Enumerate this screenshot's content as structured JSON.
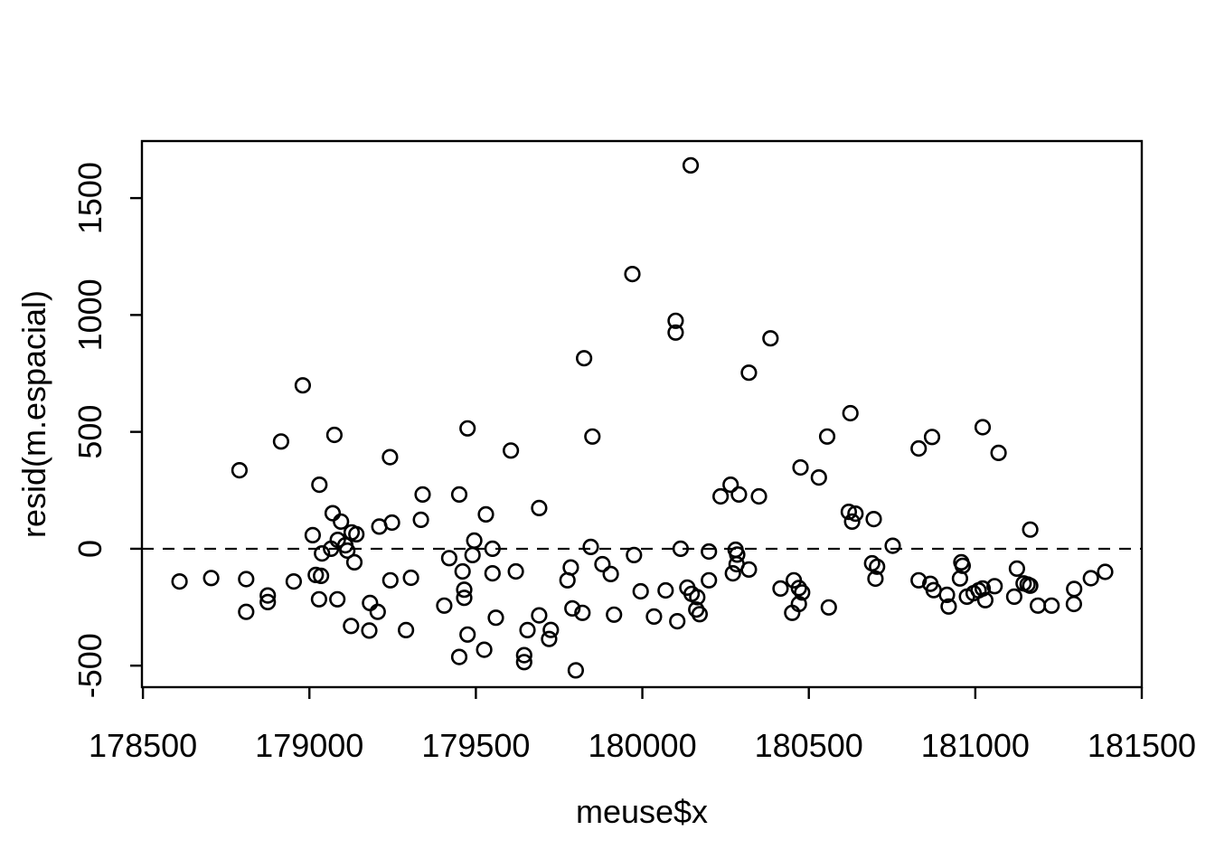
{
  "chart_data": {
    "type": "scatter",
    "title": "",
    "xlabel": "meuse$x",
    "ylabel": "resid(m.espacial)",
    "x_ticks": [
      178500,
      179000,
      179500,
      180000,
      180500,
      181000,
      181500
    ],
    "y_ticks": [
      -500,
      0,
      500,
      1000,
      1500
    ],
    "xlim": [
      178497,
      181500
    ],
    "ylim": [
      -592,
      1744
    ],
    "grid": false,
    "legend": "none",
    "marker": "open-circle",
    "marker_color": "#000000",
    "background_color": "#ffffff",
    "reference_line": {
      "axis": "y",
      "value": 0,
      "style": "dashed",
      "color": "#000000"
    },
    "points": [
      [
        178980,
        699
      ],
      [
        180145,
        1640
      ],
      [
        179970,
        1175
      ],
      [
        180100,
        975
      ],
      [
        180100,
        925
      ],
      [
        179825,
        815
      ],
      [
        180385,
        900
      ],
      [
        180320,
        753
      ],
      [
        180625,
        580
      ],
      [
        178915,
        459
      ],
      [
        179075,
        487
      ],
      [
        178790,
        336
      ],
      [
        179030,
        274
      ],
      [
        179070,
        152
      ],
      [
        179095,
        116
      ],
      [
        179010,
        58
      ],
      [
        179085,
        38
      ],
      [
        179127,
        70
      ],
      [
        179141,
        62
      ],
      [
        179108,
        15
      ],
      [
        179114,
        -8
      ],
      [
        179065,
        0
      ],
      [
        179038,
        -20
      ],
      [
        179210,
        95
      ],
      [
        179248,
        112
      ],
      [
        179135,
        -58
      ],
      [
        179019,
        -112
      ],
      [
        179035,
        -116
      ],
      [
        178953,
        -140
      ],
      [
        178610,
        -140
      ],
      [
        178705,
        -125
      ],
      [
        178810,
        -130
      ],
      [
        178875,
        -200
      ],
      [
        178875,
        -228
      ],
      [
        178810,
        -270
      ],
      [
        179029,
        -216
      ],
      [
        179084,
        -216
      ],
      [
        179182,
        -232
      ],
      [
        179205,
        -270
      ],
      [
        179125,
        -330
      ],
      [
        179180,
        -350
      ],
      [
        179243,
        -135
      ],
      [
        179475,
        515
      ],
      [
        179605,
        420
      ],
      [
        179850,
        480
      ],
      [
        179242,
        392
      ],
      [
        179340,
        232
      ],
      [
        179450,
        232
      ],
      [
        179335,
        124
      ],
      [
        179530,
        147
      ],
      [
        179690,
        174
      ],
      [
        179420,
        -40
      ],
      [
        179495,
        35
      ],
      [
        179490,
        -27
      ],
      [
        179550,
        0
      ],
      [
        179460,
        -97
      ],
      [
        179550,
        -105
      ],
      [
        179620,
        -97
      ],
      [
        179305,
        -124
      ],
      [
        179465,
        -175
      ],
      [
        179465,
        -210
      ],
      [
        179405,
        -243
      ],
      [
        179560,
        -295
      ],
      [
        179690,
        -285
      ],
      [
        179655,
        -348
      ],
      [
        179725,
        -347
      ],
      [
        179720,
        -386
      ],
      [
        179290,
        -348
      ],
      [
        179475,
        -367
      ],
      [
        179525,
        -432
      ],
      [
        179450,
        -463
      ],
      [
        179645,
        -455
      ],
      [
        179645,
        -485
      ],
      [
        179800,
        -520
      ],
      [
        179785,
        -80
      ],
      [
        179775,
        -135
      ],
      [
        179845,
        8
      ],
      [
        179790,
        -255
      ],
      [
        179820,
        -274
      ],
      [
        179915,
        -282
      ],
      [
        179880,
        -66
      ],
      [
        179905,
        -108
      ],
      [
        179975,
        -27
      ],
      [
        180555,
        480
      ],
      [
        180475,
        348
      ],
      [
        180530,
        305
      ],
      [
        180265,
        274
      ],
      [
        180235,
        224
      ],
      [
        180290,
        232
      ],
      [
        180350,
        224
      ],
      [
        180620,
        158
      ],
      [
        180640,
        150
      ],
      [
        180630,
        116
      ],
      [
        180695,
        127
      ],
      [
        180115,
        0
      ],
      [
        180200,
        -12
      ],
      [
        180280,
        -4
      ],
      [
        180285,
        -25
      ],
      [
        180283,
        -66
      ],
      [
        180272,
        -105
      ],
      [
        180320,
        -89
      ],
      [
        180200,
        -135
      ],
      [
        180070,
        -178
      ],
      [
        179995,
        -182
      ],
      [
        180135,
        -166
      ],
      [
        180148,
        -193
      ],
      [
        180165,
        -207
      ],
      [
        180162,
        -260
      ],
      [
        180172,
        -280
      ],
      [
        180035,
        -290
      ],
      [
        180105,
        -310
      ],
      [
        180415,
        -170
      ],
      [
        180455,
        -135
      ],
      [
        180470,
        -168
      ],
      [
        180480,
        -187
      ],
      [
        180470,
        -236
      ],
      [
        180450,
        -274
      ],
      [
        180560,
        -251
      ],
      [
        180690,
        -62
      ],
      [
        180705,
        -77
      ],
      [
        180700,
        -128
      ],
      [
        180752,
        13
      ],
      [
        180830,
        429
      ],
      [
        180870,
        478
      ],
      [
        181022,
        520
      ],
      [
        181070,
        410
      ],
      [
        181165,
        82
      ],
      [
        180830,
        -135
      ],
      [
        180865,
        -150
      ],
      [
        180875,
        -177
      ],
      [
        180915,
        -197
      ],
      [
        180920,
        -247
      ],
      [
        180958,
        -58
      ],
      [
        180962,
        -73
      ],
      [
        180954,
        -127
      ],
      [
        180975,
        -205
      ],
      [
        180995,
        -190
      ],
      [
        181010,
        -178
      ],
      [
        181022,
        -170
      ],
      [
        181030,
        -220
      ],
      [
        181058,
        -160
      ],
      [
        181145,
        -148
      ],
      [
        181157,
        -153
      ],
      [
        181165,
        -158
      ],
      [
        181125,
        -85
      ],
      [
        181117,
        -205
      ],
      [
        181188,
        -243
      ],
      [
        181229,
        -243
      ],
      [
        181296,
        -236
      ],
      [
        181297,
        -172
      ],
      [
        181347,
        -126
      ],
      [
        181390,
        -99
      ]
    ]
  }
}
